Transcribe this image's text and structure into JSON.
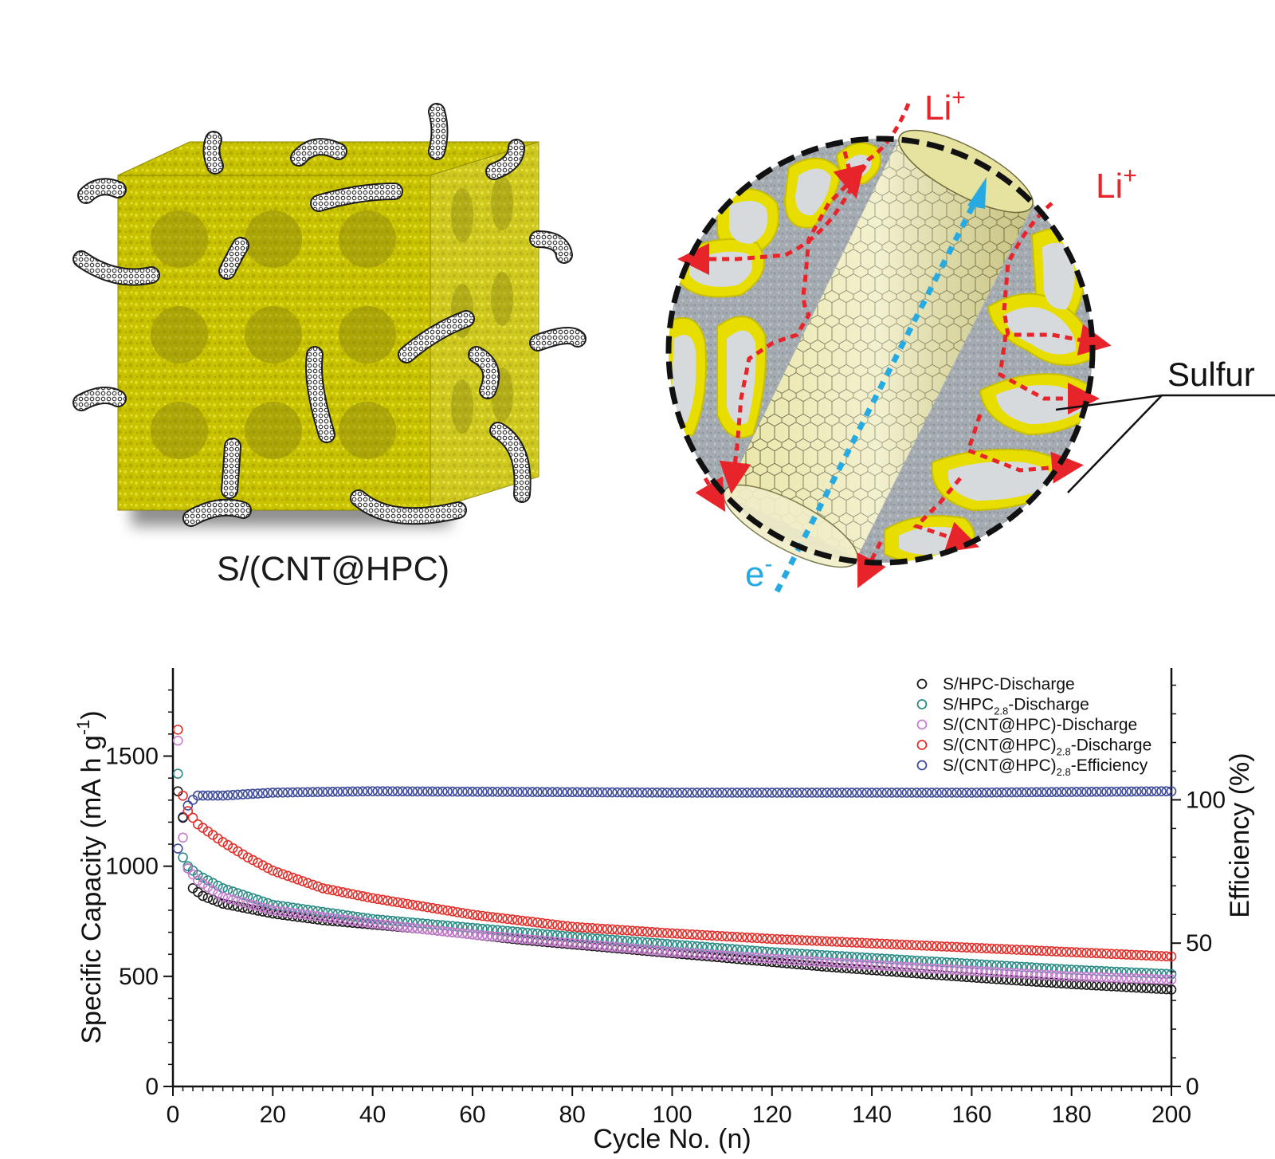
{
  "illustration": {
    "cube_label": "S/(CNT@HPC)",
    "li_label_1": "Li",
    "li_sup_1": "+",
    "li_label_2": "Li",
    "li_sup_2": "+",
    "electron_label": "e",
    "electron_sup": "-",
    "sulfur_label": "Sulfur",
    "colors": {
      "sulfur": "#e0dc00",
      "carbon": "#a7aeb4",
      "li_path": "#e8242b",
      "electron_path": "#27aae1"
    }
  },
  "chart_data": {
    "type": "scatter",
    "xlabel": "Cycle No. (n)",
    "ylabel": "Specific Capacity (mA h g",
    "ylabel_sup": "-1",
    "ylabel_close": ")",
    "y2label": "Efficiency (%)",
    "xlim": [
      0,
      200
    ],
    "ylim": [
      0,
      1900
    ],
    "y2lim": [
      0,
      146
    ],
    "x_ticks": [
      "0",
      "20",
      "40",
      "60",
      "80",
      "100",
      "120",
      "140",
      "160",
      "180",
      "200"
    ],
    "y_ticks": [
      "0",
      "500",
      "1000",
      "1500"
    ],
    "y2_ticks": [
      "0",
      "50",
      "100"
    ],
    "legend_position": "top-right",
    "series": [
      {
        "name": "S/HPC-Discharge",
        "name_sub": "",
        "name_tail": "",
        "axis": "left",
        "color": "#1a1a1a",
        "anchors": [
          [
            1,
            1340
          ],
          [
            2,
            1220
          ],
          [
            3,
            990
          ],
          [
            4,
            900
          ],
          [
            6,
            865
          ],
          [
            10,
            830
          ],
          [
            20,
            785
          ],
          [
            30,
            755
          ],
          [
            50,
            715
          ],
          [
            70,
            665
          ],
          [
            100,
            605
          ],
          [
            130,
            545
          ],
          [
            160,
            495
          ],
          [
            180,
            465
          ],
          [
            200,
            440
          ]
        ]
      },
      {
        "name": "S/HPC",
        "name_sub": "2.8",
        "name_tail": "-Discharge",
        "axis": "left",
        "color": "#2a8a85",
        "anchors": [
          [
            1,
            1420
          ],
          [
            2,
            1040
          ],
          [
            3,
            1000
          ],
          [
            5,
            960
          ],
          [
            10,
            900
          ],
          [
            20,
            825
          ],
          [
            40,
            760
          ],
          [
            60,
            720
          ],
          [
            80,
            680
          ],
          [
            100,
            645
          ],
          [
            120,
            610
          ],
          [
            150,
            570
          ],
          [
            180,
            530
          ],
          [
            200,
            510
          ]
        ]
      },
      {
        "name": "S/(CNT@HPC)-Discharge",
        "name_sub": "",
        "name_tail": "",
        "axis": "left",
        "color": "#c77dd0",
        "anchors": [
          [
            1,
            1570
          ],
          [
            2,
            1130
          ],
          [
            3,
            990
          ],
          [
            5,
            935
          ],
          [
            10,
            860
          ],
          [
            20,
            800
          ],
          [
            40,
            740
          ],
          [
            60,
            690
          ],
          [
            80,
            650
          ],
          [
            100,
            610
          ],
          [
            130,
            565
          ],
          [
            160,
            525
          ],
          [
            180,
            500
          ],
          [
            200,
            485
          ]
        ]
      },
      {
        "name": "S/(CNT@HPC)",
        "name_sub": "2.8",
        "name_tail": "-Discharge",
        "axis": "left",
        "color": "#e0302b",
        "anchors": [
          [
            1,
            1620
          ],
          [
            2,
            1320
          ],
          [
            3,
            1250
          ],
          [
            5,
            1190
          ],
          [
            10,
            1110
          ],
          [
            15,
            1040
          ],
          [
            20,
            980
          ],
          [
            30,
            900
          ],
          [
            40,
            855
          ],
          [
            60,
            780
          ],
          [
            80,
            725
          ],
          [
            100,
            695
          ],
          [
            120,
            670
          ],
          [
            150,
            640
          ],
          [
            180,
            610
          ],
          [
            200,
            590
          ]
        ]
      },
      {
        "name": "S/(CNT@HPC)",
        "name_sub": "2.8",
        "name_tail": "-Efficiency",
        "axis": "right",
        "color": "#3f4c9a",
        "anchors": [
          [
            1,
            83
          ],
          [
            2,
            94
          ],
          [
            3,
            98
          ],
          [
            4,
            100
          ],
          [
            5,
            101.5
          ],
          [
            10,
            101.5
          ],
          [
            20,
            102.5
          ],
          [
            40,
            103
          ],
          [
            100,
            102.5
          ],
          [
            160,
            102.5
          ],
          [
            200,
            103
          ]
        ]
      }
    ]
  }
}
